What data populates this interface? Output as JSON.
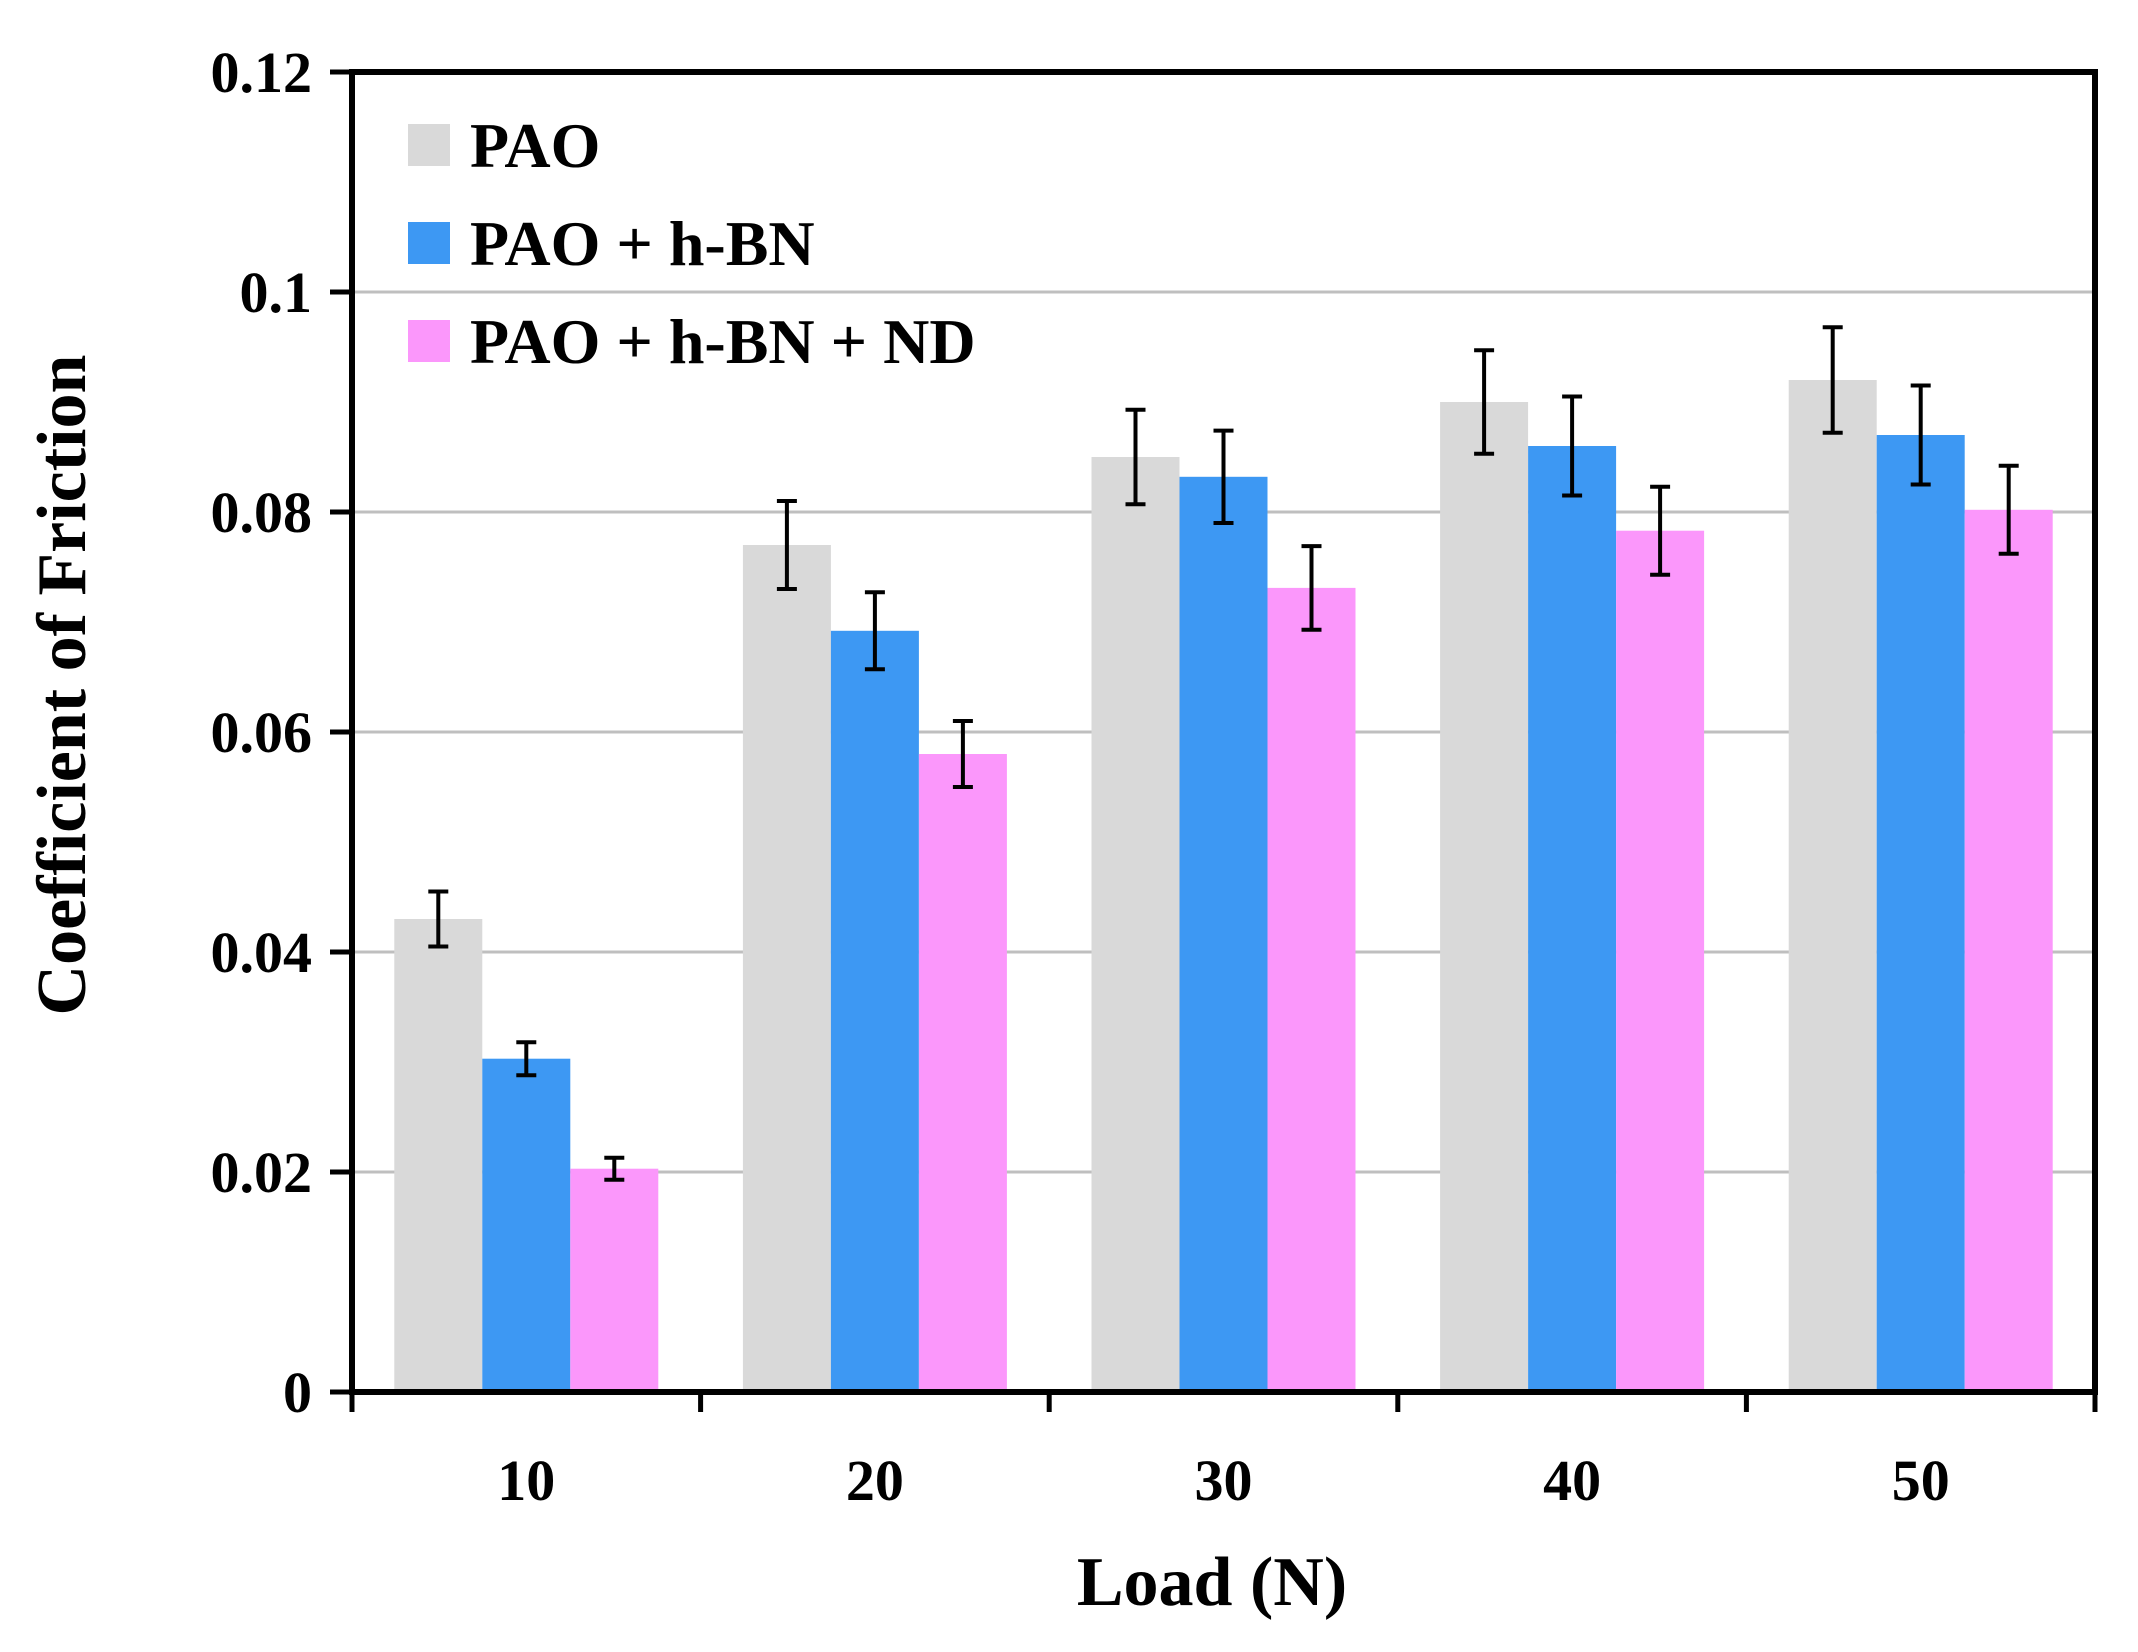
{
  "chart_data": {
    "type": "bar",
    "title": "",
    "xlabel": "Load (N)",
    "ylabel": "Coefficient of Friction",
    "categories": [
      "10",
      "20",
      "30",
      "40",
      "50"
    ],
    "ylim": [
      0,
      0.12
    ],
    "yticks": [
      0,
      0.02,
      0.04,
      0.06,
      0.08,
      0.1,
      0.12
    ],
    "ytick_labels": [
      "0",
      "0.02",
      "0.04",
      "0.06",
      "0.08",
      "0.1",
      "0.12"
    ],
    "grid": true,
    "legend_position": "top-left",
    "series": [
      {
        "name": "PAO",
        "color": "#d9d9d9",
        "values": [
          0.043,
          0.077,
          0.085,
          0.09,
          0.092
        ],
        "errors": [
          0.0025,
          0.004,
          0.0043,
          0.0047,
          0.0048
        ]
      },
      {
        "name": "PAO + h-BN",
        "color": "#3d98f3",
        "values": [
          0.0303,
          0.0692,
          0.0832,
          0.086,
          0.087
        ],
        "errors": [
          0.0015,
          0.0035,
          0.0042,
          0.0045,
          0.0045
        ]
      },
      {
        "name": "PAO + h-BN + ND",
        "color": "#fb97fb",
        "values": [
          0.0203,
          0.058,
          0.0731,
          0.0783,
          0.0802
        ],
        "errors": [
          0.001,
          0.003,
          0.0038,
          0.004,
          0.004
        ]
      }
    ]
  }
}
